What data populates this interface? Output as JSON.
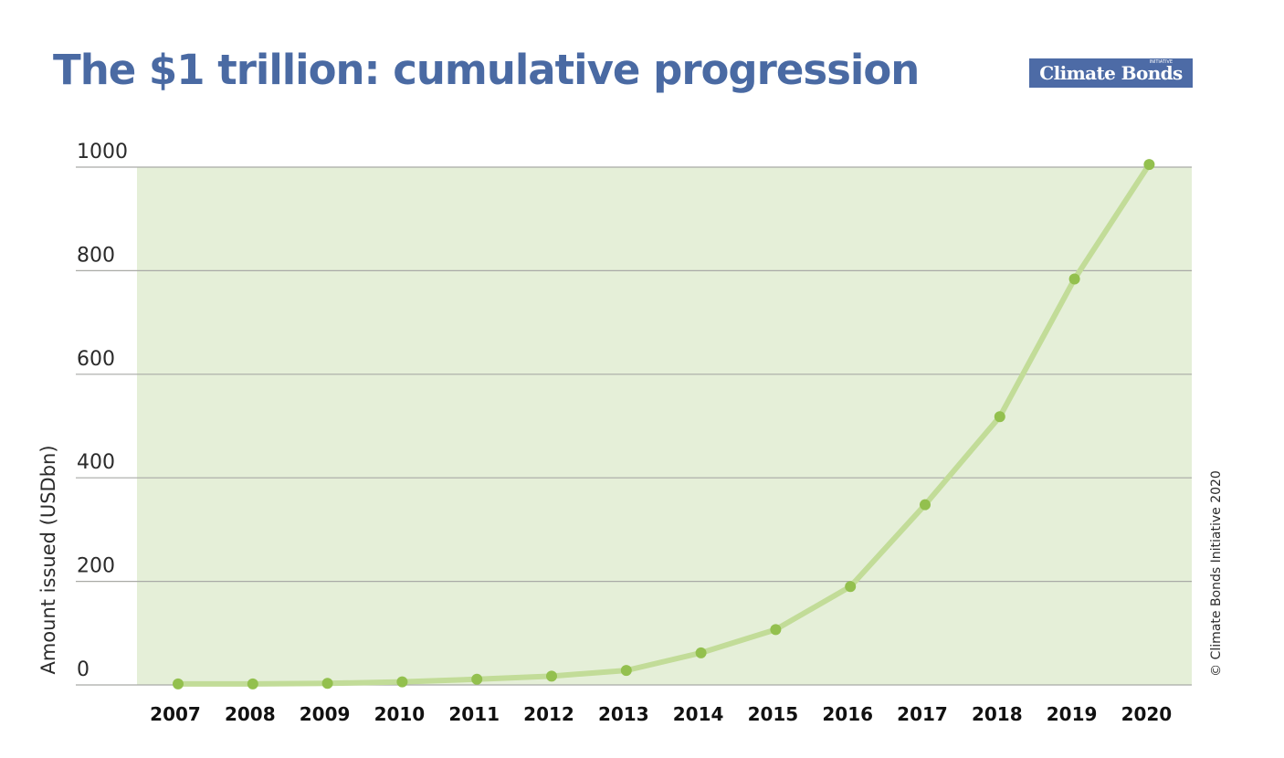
{
  "title": "The $1 trillion: cumulative progression",
  "logo": {
    "name": "Climate Bonds",
    "small_text": "INITIATIVE"
  },
  "copyright": "© Climate Bonds Initiative 2020",
  "colors": {
    "title": "#4a6aa3",
    "logo_background": "#4d6ba6",
    "plot_background": "#e5efd8",
    "line": "#c2dc98",
    "marker": "#93c04e",
    "grid": "#a9aaa6"
  },
  "chart_data": {
    "type": "line",
    "title": "The $1 trillion: cumulative progression",
    "xlabel": "",
    "ylabel": "Amount issued (USDbn)",
    "categories": [
      "2007",
      "2008",
      "2009",
      "2010",
      "2011",
      "2012",
      "2013",
      "2014",
      "2015",
      "2016",
      "2017",
      "2018",
      "2019",
      "2020"
    ],
    "series": [
      {
        "values": [
          2,
          2,
          3,
          6,
          11,
          17,
          28,
          62,
          107,
          190,
          348,
          518,
          784,
          1005
        ]
      }
    ],
    "ylim": [
      0,
      1000
    ],
    "yticks": [
      "0",
      "200",
      "400",
      "600",
      "800",
      "1000"
    ],
    "grid": true,
    "legend": "none"
  }
}
